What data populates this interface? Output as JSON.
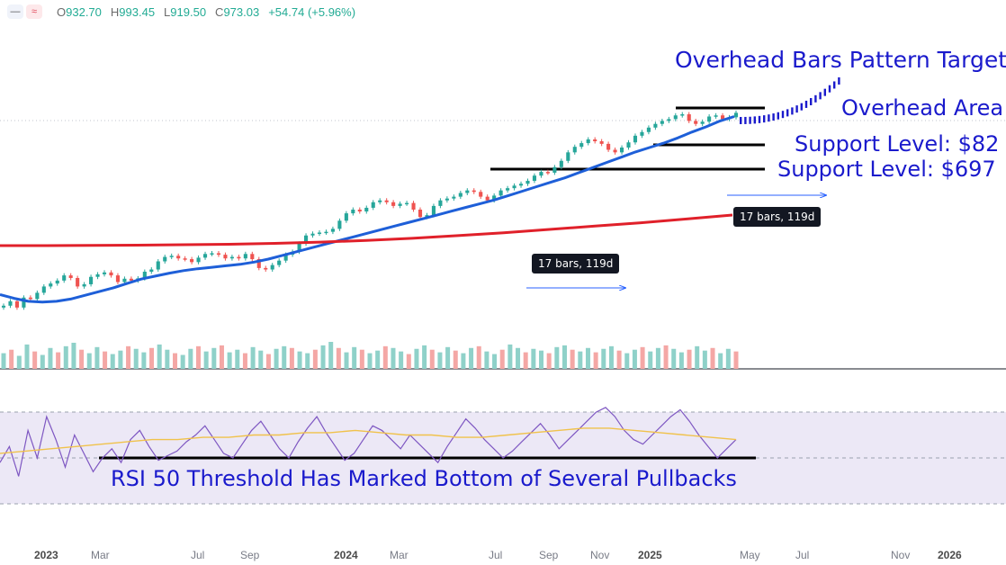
{
  "header": {
    "ohlc": [
      {
        "label": "O",
        "value": "932.70"
      },
      {
        "label": "H",
        "value": "993.45"
      },
      {
        "label": "L",
        "value": "919.50"
      },
      {
        "label": "C",
        "value": "973.03"
      }
    ],
    "change": "+54.74 (+5.96%)",
    "icons": [
      "menu-icon",
      "wave-icon"
    ]
  },
  "annotations": {
    "target": "Overhead Bars Pattern Target",
    "overhead": "Overhead Area",
    "support1": "Support Level: $82",
    "support2": "Support Level: $697",
    "rsi": "RSI 50 Threshold Has Marked Bottom of Several Pullbacks",
    "bars_callout_1": "17 bars, 119d",
    "bars_callout_2": "17 bars, 119d"
  },
  "colors": {
    "up": "#26a69a",
    "down": "#ef5350",
    "ma_fast": "#1e5fd8",
    "ma_slow": "#e0202a",
    "annotation": "#1a1acc",
    "rsi_line": "#7e57c2",
    "rsi_ma": "#f0c24b"
  },
  "chart_data": {
    "type": "candlestick",
    "x_axis": {
      "ticks": [
        {
          "label": "2023",
          "major": true
        },
        {
          "label": "Mar"
        },
        {
          "label": "Jul"
        },
        {
          "label": "Sep"
        },
        {
          "label": "2024",
          "major": true
        },
        {
          "label": "Mar"
        },
        {
          "label": "Jul"
        },
        {
          "label": "Sep"
        },
        {
          "label": "Nov"
        },
        {
          "label": "2025",
          "major": true
        },
        {
          "label": "May"
        },
        {
          "label": "Jul"
        },
        {
          "label": "Nov"
        },
        {
          "label": "2026",
          "major": true
        }
      ]
    },
    "price_closes": [
      320,
      332,
      315,
      342,
      338,
      355,
      372,
      380,
      388,
      402,
      395,
      372,
      378,
      398,
      405,
      410,
      402,
      384,
      393,
      388,
      394,
      412,
      418,
      440,
      452,
      455,
      448,
      446,
      438,
      450,
      460,
      462,
      458,
      448,
      452,
      448,
      460,
      446,
      422,
      418,
      430,
      442,
      458,
      466,
      488,
      510,
      515,
      518,
      520,
      528,
      550,
      570,
      580,
      575,
      585,
      600,
      605,
      600,
      590,
      596,
      598,
      580,
      560,
      565,
      590,
      605,
      610,
      615,
      625,
      632,
      628,
      615,
      605,
      618,
      632,
      638,
      645,
      650,
      658,
      672,
      682,
      680,
      695,
      712,
      735,
      750,
      760,
      770,
      765,
      758,
      742,
      735,
      748,
      762,
      780,
      790,
      802,
      812,
      820,
      825,
      835,
      838,
      820,
      812,
      818,
      832,
      835,
      825,
      830,
      842
    ],
    "overlays": [
      {
        "name": "moving average (fast)",
        "values": [
          350,
          340,
          332,
          330,
          332,
          338,
          348,
          358,
          368,
          380,
          392,
          400,
          408,
          415,
          420,
          424,
          428,
          432,
          438,
          446,
          456,
          466,
          476,
          486,
          496,
          506,
          516,
          526,
          536,
          546,
          556,
          566,
          576,
          586,
          596,
          606,
          618,
          630,
          642,
          654,
          666,
          680,
          694,
          708,
          722,
          736,
          748,
          760,
          774,
          790,
          804,
          820,
          832
        ]
      },
      {
        "name": "moving average (slow)",
        "values": [
          432,
          432,
          433,
          434,
          436,
          438,
          442,
          448,
          455,
          465,
          477,
          490,
          505,
          520,
          535,
          552,
          570
        ]
      }
    ],
    "projection": "dotted ascending bars toward Overhead Bars Pattern Target",
    "levels": [
      {
        "name": "Overhead Area",
        "kind": "resistance"
      },
      {
        "name": "Support Level: $82",
        "kind": "support"
      },
      {
        "name": "Support Level: $697",
        "kind": "support"
      }
    ],
    "volume": [
      18,
      22,
      15,
      28,
      20,
      16,
      24,
      19,
      26,
      30,
      22,
      18,
      25,
      20,
      17,
      21,
      26,
      23,
      19,
      24,
      28,
      22,
      18,
      16,
      23,
      26,
      20,
      24,
      27,
      19,
      22,
      18,
      25,
      21,
      17,
      23,
      26,
      24,
      20,
      18,
      22,
      27,
      31,
      24,
      19,
      25,
      22,
      18,
      21,
      26,
      24,
      20,
      17,
      23,
      27,
      22,
      19,
      25,
      21,
      18,
      24,
      26,
      20,
      17,
      22,
      28,
      24,
      19,
      23,
      21,
      18,
      25,
      27,
      22,
      20,
      24,
      19,
      23,
      26,
      21,
      18,
      22,
      25,
      20,
      24,
      27,
      23,
      19,
      22,
      26,
      21,
      24,
      18,
      23,
      20
    ],
    "rsi": {
      "levels": [
        70,
        50,
        30
      ],
      "values": [
        48,
        55,
        42,
        62,
        50,
        68,
        58,
        46,
        60,
        52,
        44,
        50,
        54,
        48,
        58,
        62,
        55,
        49,
        51,
        53,
        57,
        60,
        64,
        58,
        52,
        50,
        56,
        62,
        66,
        60,
        54,
        50,
        57,
        63,
        68,
        61,
        55,
        49,
        52,
        58,
        64,
        62,
        58,
        54,
        60,
        56,
        52,
        48,
        55,
        61,
        67,
        63,
        58,
        54,
        50,
        53,
        57,
        61,
        65,
        60,
        54,
        58,
        62,
        66,
        70,
        72,
        68,
        62,
        58,
        56,
        60,
        64,
        68,
        71,
        66,
        60,
        55,
        50,
        54,
        58
      ],
      "ma": [
        52,
        53,
        54,
        55,
        56,
        57,
        58,
        58,
        59,
        59,
        60,
        60,
        61,
        61,
        62,
        61,
        60,
        60,
        59,
        59,
        60,
        61,
        62,
        63,
        63,
        62,
        61,
        60,
        59,
        58
      ]
    }
  }
}
